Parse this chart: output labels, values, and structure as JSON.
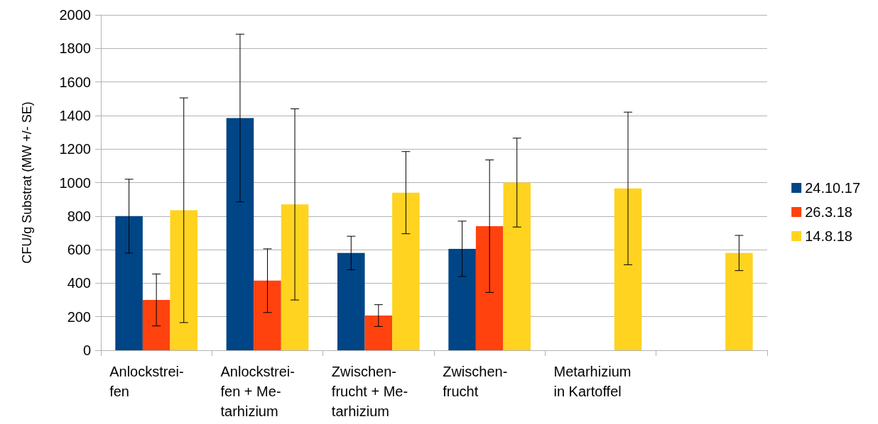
{
  "chart_data": {
    "type": "bar",
    "ylabel": "CFU/g Substrat (MW +/- SE)",
    "categories": [
      "Anlockstrei-\nfen",
      "Anlockstrei-\nfen + Me-\ntarhizium",
      "Zwischen-\nfrucht + Me-\ntarhizium",
      "Zwischen-\nfrucht",
      "Metarhizium\nin Kartoffel",
      null
    ],
    "series": [
      {
        "name": "24.10.17",
        "color": "#004586",
        "values": [
          800,
          1385,
          580,
          605,
          null,
          null
        ],
        "errors": [
          220,
          500,
          100,
          165,
          null,
          null
        ]
      },
      {
        "name": "26.3.18",
        "color": "#ff420e",
        "values": [
          300,
          415,
          207,
          740,
          null,
          null
        ],
        "errors": [
          155,
          190,
          65,
          395,
          null,
          null
        ]
      },
      {
        "name": "14.8.18",
        "color": "#ffd320",
        "values": [
          835,
          870,
          940,
          1000,
          965,
          580
        ],
        "errors": [
          670,
          570,
          245,
          265,
          455,
          105
        ]
      }
    ],
    "ylim": [
      0,
      2000
    ],
    "yticks": [
      0,
      200,
      400,
      600,
      800,
      1000,
      1200,
      1400,
      1600,
      1800,
      2000
    ],
    "grid": "y",
    "legend": "right"
  }
}
